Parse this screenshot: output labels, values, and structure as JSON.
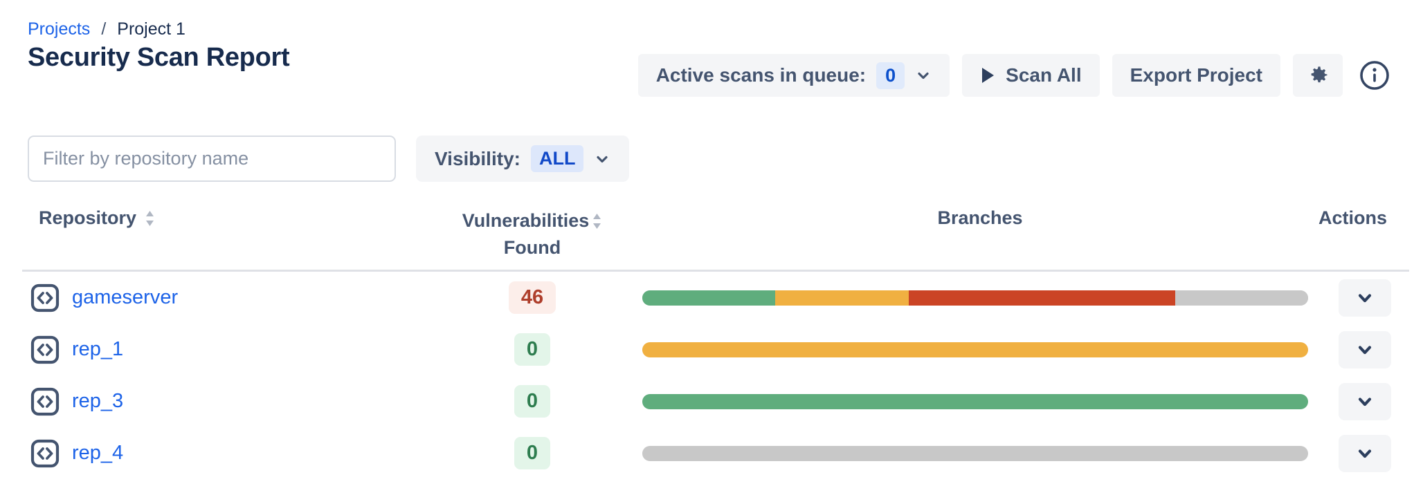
{
  "breadcrumb": {
    "link": "Projects",
    "separator": "/",
    "current": "Project 1"
  },
  "page": {
    "title": "Security Scan Report"
  },
  "header_actions": {
    "queue_label": "Active scans in queue:",
    "queue_count": "0",
    "scan_all_label": "Scan All",
    "export_label": "Export Project",
    "gear_icon": "gear-icon",
    "info_icon": "info-icon"
  },
  "filters": {
    "search_placeholder": "Filter by repository name",
    "visibility_label": "Visibility:",
    "visibility_value": "ALL"
  },
  "table": {
    "header": {
      "repository": "Repository",
      "vulnerabilities_line1": "Vulnerabilities",
      "vulnerabilities_line2": "Found",
      "branches": "Branches",
      "actions": "Actions"
    },
    "rows": [
      {
        "name": "gameserver",
        "vulnerabilities": "46",
        "severity": "high",
        "branches": [
          {
            "status": "passed",
            "color": "#5FAD7D",
            "pct": 20
          },
          {
            "status": "warning",
            "color": "#F0B041",
            "pct": 20
          },
          {
            "status": "failed",
            "color": "#CB4425",
            "pct": 40
          },
          {
            "status": "not-scanned",
            "color": "#C8C8C8",
            "pct": 20
          }
        ]
      },
      {
        "name": "rep_1",
        "vulnerabilities": "0",
        "severity": "none",
        "branches": [
          {
            "status": "warning",
            "color": "#F0B041",
            "pct": 100
          }
        ]
      },
      {
        "name": "rep_3",
        "vulnerabilities": "0",
        "severity": "none",
        "branches": [
          {
            "status": "passed",
            "color": "#5FAD7D",
            "pct": 100
          }
        ]
      },
      {
        "name": "rep_4",
        "vulnerabilities": "0",
        "severity": "none",
        "branches": [
          {
            "status": "not-scanned",
            "color": "#C8C8C8",
            "pct": 100
          }
        ]
      }
    ]
  },
  "colors": {
    "link_blue": "#1D63E8",
    "accent_blue_text": "#0C50CC",
    "accent_blue_bg": "#E0EAFB",
    "slate_text": "#44546F",
    "title_text": "#172B4D",
    "button_bg": "#F4F5F7",
    "divider": "#DFE1E6",
    "bar_green": "#5FAD7D",
    "bar_orange": "#F0B041",
    "bar_red": "#CB4425",
    "bar_gray": "#C8C8C8",
    "badge_red_bg": "#FCEEEA",
    "badge_red_text": "#AE3E2B",
    "badge_green_bg": "#E3F5E9",
    "badge_green_text": "#2E7D4F"
  }
}
